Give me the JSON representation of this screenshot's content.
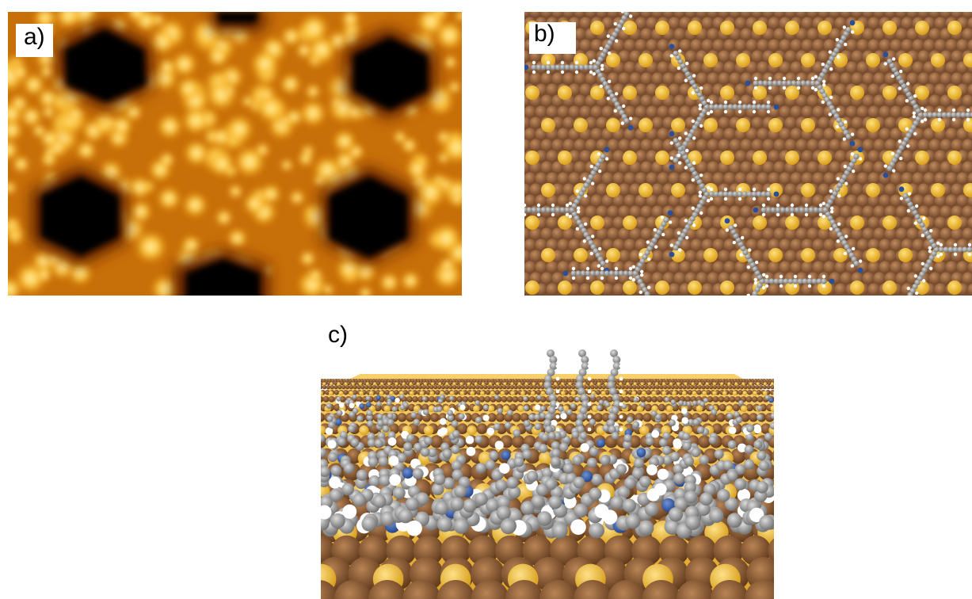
{
  "panels": {
    "a": {
      "label": "a)"
    },
    "b": {
      "label": "b)"
    },
    "c": {
      "label": "c)"
    }
  },
  "colors": {
    "stm_dark": "#000000",
    "stm_mid": "#b34a00",
    "stm_bright": "#ffd34a",
    "stm_highlight": "#fff6c8",
    "copper": "#8a5a36",
    "copper_light": "#b07a4d",
    "gold_atom": "#f2b52a",
    "carbon": "#8f8f8f",
    "hydrogen": "#ffffff",
    "nitrogen": "#2a4f9a"
  }
}
